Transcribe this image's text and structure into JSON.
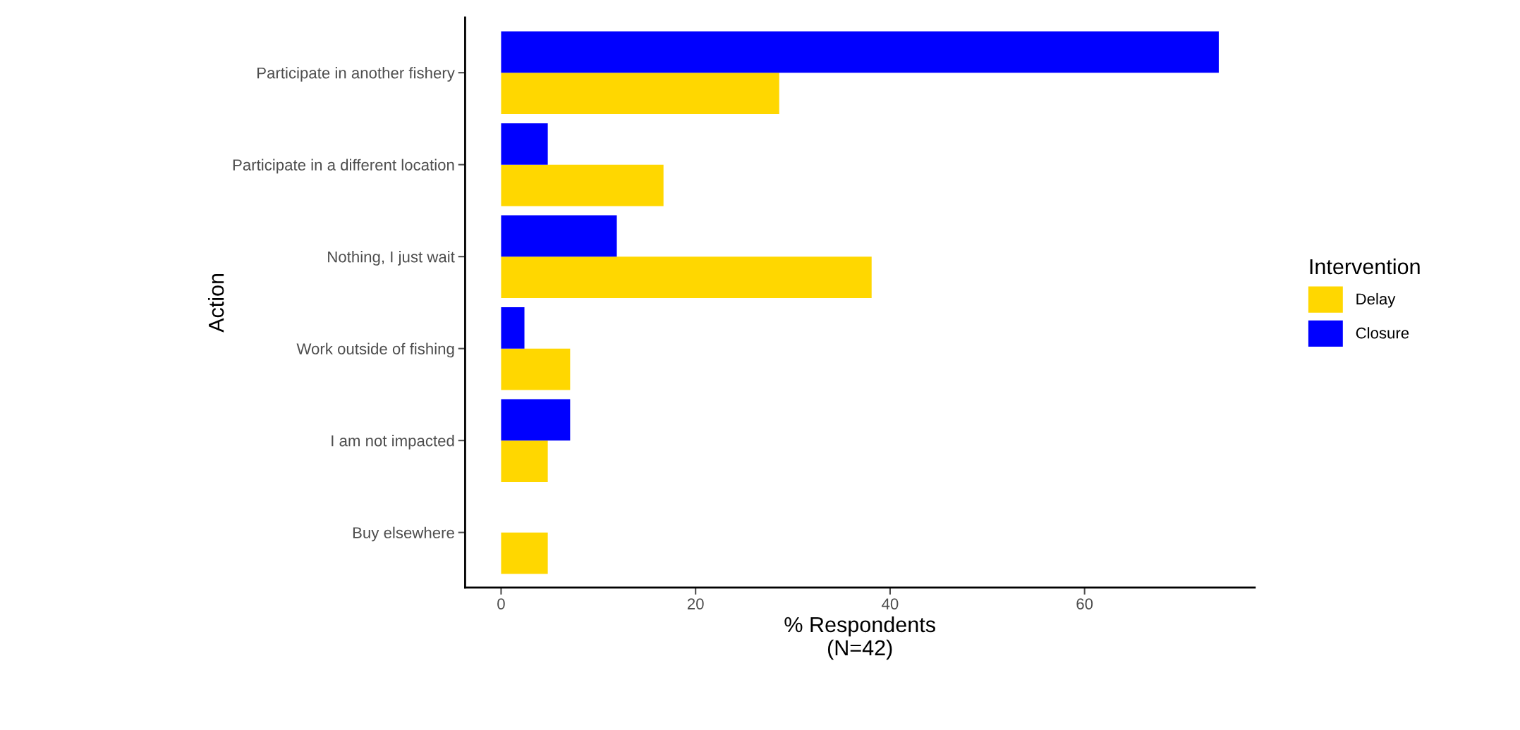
{
  "chart_data": {
    "type": "bar",
    "orientation": "horizontal",
    "xlabel": "% Respondents\n(N=42)",
    "ylabel": "Action",
    "legend_title": "Intervention",
    "categories": [
      "Participate in another fishery",
      "Participate in a different location",
      "Nothing, I just wait",
      "Work outside of fishing",
      "I am not impacted",
      "Buy elsewhere"
    ],
    "series": [
      {
        "name": "Delay",
        "color": "#ffd700",
        "values": [
          28.6,
          16.7,
          38.1,
          7.1,
          4.8,
          4.8
        ]
      },
      {
        "name": "Closure",
        "color": "#0000ff",
        "values": [
          73.8,
          4.8,
          11.9,
          2.4,
          7.1,
          null
        ]
      }
    ],
    "xlim": [
      -3.7,
      77.5
    ],
    "xticks": [
      0,
      20,
      40,
      60
    ],
    "grid": false,
    "legend": "right"
  }
}
